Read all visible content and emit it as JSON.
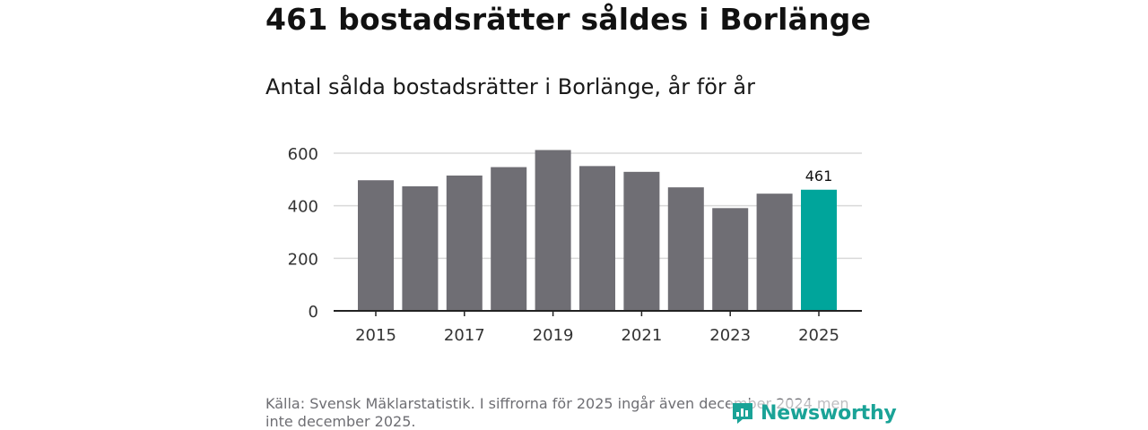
{
  "header": {
    "title": "461 bostadsrätter såldes i Borlänge",
    "subtitle": "Antal sålda bostadsrätter i Borlänge, år för år"
  },
  "footer": {
    "source": "Källa: Svensk Mäklarstatistik. I siffrorna för 2025 ingår även december 2024 men inte december 2025.",
    "logo_text": "Newsworthy"
  },
  "colors": {
    "bar": "#6f6e74",
    "highlight": "#00a59b",
    "grid": "#d9d9d9",
    "axis": "#222222",
    "brand": "#1aa397"
  },
  "chart_data": {
    "type": "bar",
    "title": "Antal sålda bostadsrätter i Borlänge, år för år",
    "xlabel": "",
    "ylabel": "",
    "categories": [
      "2015",
      "2016",
      "2017",
      "2018",
      "2019",
      "2020",
      "2021",
      "2022",
      "2023",
      "2024",
      "2025"
    ],
    "values": [
      497,
      474,
      515,
      547,
      612,
      551,
      529,
      470,
      391,
      446,
      461
    ],
    "highlight_index": 10,
    "data_labels": [
      {
        "index": 10,
        "text": "461"
      }
    ],
    "x_tick_labels": [
      "2015",
      "2017",
      "2019",
      "2021",
      "2023",
      "2025"
    ],
    "y_ticks": [
      0,
      200,
      400,
      600
    ],
    "ylim": [
      0,
      600
    ],
    "grid": true,
    "legend": "none"
  }
}
